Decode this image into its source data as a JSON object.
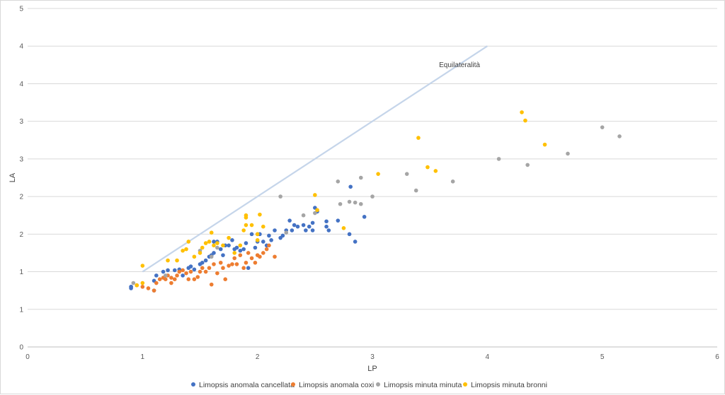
{
  "chart_data": {
    "type": "scatter",
    "title": "",
    "xlabel": "LP",
    "ylabel": "LA",
    "xlim": [
      0,
      6
    ],
    "ylim": [
      0,
      4.5
    ],
    "x_ticks": [
      "0",
      "1",
      "2",
      "3",
      "4",
      "5",
      "6"
    ],
    "y_tick_values": [
      0,
      0.5,
      1,
      1.5,
      2,
      2.5,
      3,
      3.5,
      4,
      4.5
    ],
    "y_tick_labels": [
      "0",
      "1",
      "1",
      "2",
      "2",
      "3",
      "3",
      "4",
      "4",
      "5"
    ],
    "grid": "horizontal",
    "legend_position": "bottom",
    "reference_line": {
      "label": "Equilateralità",
      "color": "#c5d5ea",
      "x": [
        1,
        4
      ],
      "y": [
        1,
        4
      ]
    },
    "series": [
      {
        "name": "Limopsis anomala cancellata",
        "color": "#4472c4",
        "points": [
          [
            0.9,
            0.8
          ],
          [
            0.9,
            0.78
          ],
          [
            0.9,
            0.8
          ],
          [
            1.1,
            0.75
          ],
          [
            1.1,
            0.88
          ],
          [
            1.12,
            0.95
          ],
          [
            1.18,
            1
          ],
          [
            1.22,
            1.02
          ],
          [
            1.28,
            1.02
          ],
          [
            1.32,
            1.03
          ],
          [
            1.35,
            0.95
          ],
          [
            1.4,
            1.05
          ],
          [
            1.42,
            1.07
          ],
          [
            1.45,
            1.03
          ],
          [
            1.5,
            1.1
          ],
          [
            1.52,
            1.12
          ],
          [
            1.55,
            1.15
          ],
          [
            1.58,
            1.2
          ],
          [
            1.6,
            1.22
          ],
          [
            1.62,
            1.25
          ],
          [
            1.62,
            1.4
          ],
          [
            1.65,
            1.4
          ],
          [
            1.68,
            1.3
          ],
          [
            1.7,
            1.22
          ],
          [
            1.72,
            1.35
          ],
          [
            1.75,
            1.35
          ],
          [
            1.78,
            1.42
          ],
          [
            1.8,
            1.3
          ],
          [
            1.82,
            1.32
          ],
          [
            1.85,
            1.28
          ],
          [
            1.88,
            1.3
          ],
          [
            1.9,
            1.38
          ],
          [
            1.92,
            1.05
          ],
          [
            1.95,
            1.5
          ],
          [
            1.98,
            1.32
          ],
          [
            2,
            1.4
          ],
          [
            2,
            1.5
          ],
          [
            2.02,
            1.5
          ],
          [
            2.05,
            1.4
          ],
          [
            2.08,
            1.35
          ],
          [
            2.1,
            1.48
          ],
          [
            2.12,
            1.42
          ],
          [
            2.15,
            1.55
          ],
          [
            2.2,
            1.45
          ],
          [
            2.22,
            1.48
          ],
          [
            2.25,
            1.55
          ],
          [
            2.28,
            1.68
          ],
          [
            2.3,
            1.55
          ],
          [
            2.32,
            1.62
          ],
          [
            2.35,
            1.6
          ],
          [
            2.4,
            1.62
          ],
          [
            2.42,
            1.55
          ],
          [
            2.45,
            1.6
          ],
          [
            2.48,
            1.65
          ],
          [
            2.48,
            1.55
          ],
          [
            2.5,
            1.85
          ],
          [
            2.52,
            1.8
          ],
          [
            2.6,
            1.67
          ],
          [
            2.6,
            1.6
          ],
          [
            2.62,
            1.55
          ],
          [
            2.7,
            1.68
          ],
          [
            2.8,
            1.5
          ],
          [
            2.81,
            2.13
          ],
          [
            2.85,
            1.4
          ],
          [
            2.93,
            1.73
          ]
        ]
      },
      {
        "name": "Limopsis anomala coxi",
        "color": "#ed7d31",
        "points": [
          [
            0.95,
            0.82
          ],
          [
            1,
            0.8
          ],
          [
            1.05,
            0.78
          ],
          [
            1.1,
            0.75
          ],
          [
            1.12,
            0.85
          ],
          [
            1.15,
            0.9
          ],
          [
            1.18,
            0.92
          ],
          [
            1.2,
            0.9
          ],
          [
            1.22,
            0.95
          ],
          [
            1.25,
            0.85
          ],
          [
            1.25,
            0.92
          ],
          [
            1.28,
            0.9
          ],
          [
            1.3,
            0.95
          ],
          [
            1.32,
            1
          ],
          [
            1.35,
            1.02
          ],
          [
            1.38,
            0.98
          ],
          [
            1.4,
            0.9
          ],
          [
            1.42,
            1
          ],
          [
            1.45,
            0.9
          ],
          [
            1.48,
            0.93
          ],
          [
            1.5,
            1
          ],
          [
            1.52,
            1.05
          ],
          [
            1.55,
            1
          ],
          [
            1.58,
            1.05
          ],
          [
            1.6,
            0.83
          ],
          [
            1.62,
            1.1
          ],
          [
            1.65,
            0.98
          ],
          [
            1.68,
            1.12
          ],
          [
            1.7,
            1.05
          ],
          [
            1.72,
            0.9
          ],
          [
            1.75,
            1.08
          ],
          [
            1.78,
            1.1
          ],
          [
            1.8,
            1.18
          ],
          [
            1.82,
            1.1
          ],
          [
            1.85,
            1.22
          ],
          [
            1.88,
            1.05
          ],
          [
            1.9,
            1.12
          ],
          [
            1.92,
            1.25
          ],
          [
            1.95,
            1.18
          ],
          [
            1.98,
            1.12
          ],
          [
            2,
            1.22
          ],
          [
            2.02,
            1.2
          ],
          [
            2.05,
            1.25
          ],
          [
            2.08,
            1.3
          ],
          [
            2.1,
            1.35
          ],
          [
            2.15,
            1.2
          ]
        ]
      },
      {
        "name": "Limopsis minuta minuta",
        "color": "#a5a5a5",
        "points": [
          [
            0.92,
            0.85
          ],
          [
            1.2,
            0.95
          ],
          [
            1.5,
            1.28
          ],
          [
            1.6,
            1.2
          ],
          [
            1.65,
            1.32
          ],
          [
            2.2,
            2
          ],
          [
            2.25,
            1.52
          ],
          [
            2.4,
            1.75
          ],
          [
            2.5,
            1.78
          ],
          [
            2.7,
            2.2
          ],
          [
            2.72,
            1.9
          ],
          [
            2.8,
            1.93
          ],
          [
            2.85,
            1.92
          ],
          [
            2.9,
            1.9
          ],
          [
            2.9,
            2.25
          ],
          [
            3,
            2
          ],
          [
            3.3,
            2.3
          ],
          [
            3.38,
            2.08
          ],
          [
            3.7,
            2.2
          ],
          [
            4.1,
            2.5
          ],
          [
            4.35,
            2.42
          ],
          [
            4.7,
            2.57
          ],
          [
            5,
            2.92
          ],
          [
            5.15,
            2.8
          ]
        ]
      },
      {
        "name": "Limopsis minuta bronni",
        "color": "#ffc000",
        "points": [
          [
            0.95,
            0.82
          ],
          [
            1,
            0.85
          ],
          [
            1,
            1.08
          ],
          [
            1.22,
            1.15
          ],
          [
            1.3,
            1.15
          ],
          [
            1.35,
            1.28
          ],
          [
            1.38,
            1.3
          ],
          [
            1.4,
            1.4
          ],
          [
            1.45,
            1.2
          ],
          [
            1.5,
            1.25
          ],
          [
            1.52,
            1.32
          ],
          [
            1.55,
            1.38
          ],
          [
            1.58,
            1.4
          ],
          [
            1.6,
            1.52
          ],
          [
            1.62,
            1.35
          ],
          [
            1.65,
            1.38
          ],
          [
            1.7,
            1.35
          ],
          [
            1.75,
            1.45
          ],
          [
            1.8,
            1.25
          ],
          [
            1.85,
            1.35
          ],
          [
            1.88,
            1.55
          ],
          [
            1.9,
            1.62
          ],
          [
            1.9,
            1.72
          ],
          [
            1.9,
            1.75
          ],
          [
            1.95,
            1.62
          ],
          [
            2,
            1.5
          ],
          [
            2,
            1.42
          ],
          [
            2.02,
            1.76
          ],
          [
            2.05,
            1.6
          ],
          [
            2.5,
            2.02
          ],
          [
            2.52,
            1.82
          ],
          [
            2.75,
            1.58
          ],
          [
            3.05,
            2.3
          ],
          [
            3.4,
            2.78
          ],
          [
            3.48,
            2.39
          ],
          [
            3.55,
            2.34
          ],
          [
            4.3,
            3.12
          ],
          [
            4.33,
            3.01
          ],
          [
            4.5,
            2.69
          ]
        ]
      }
    ]
  }
}
